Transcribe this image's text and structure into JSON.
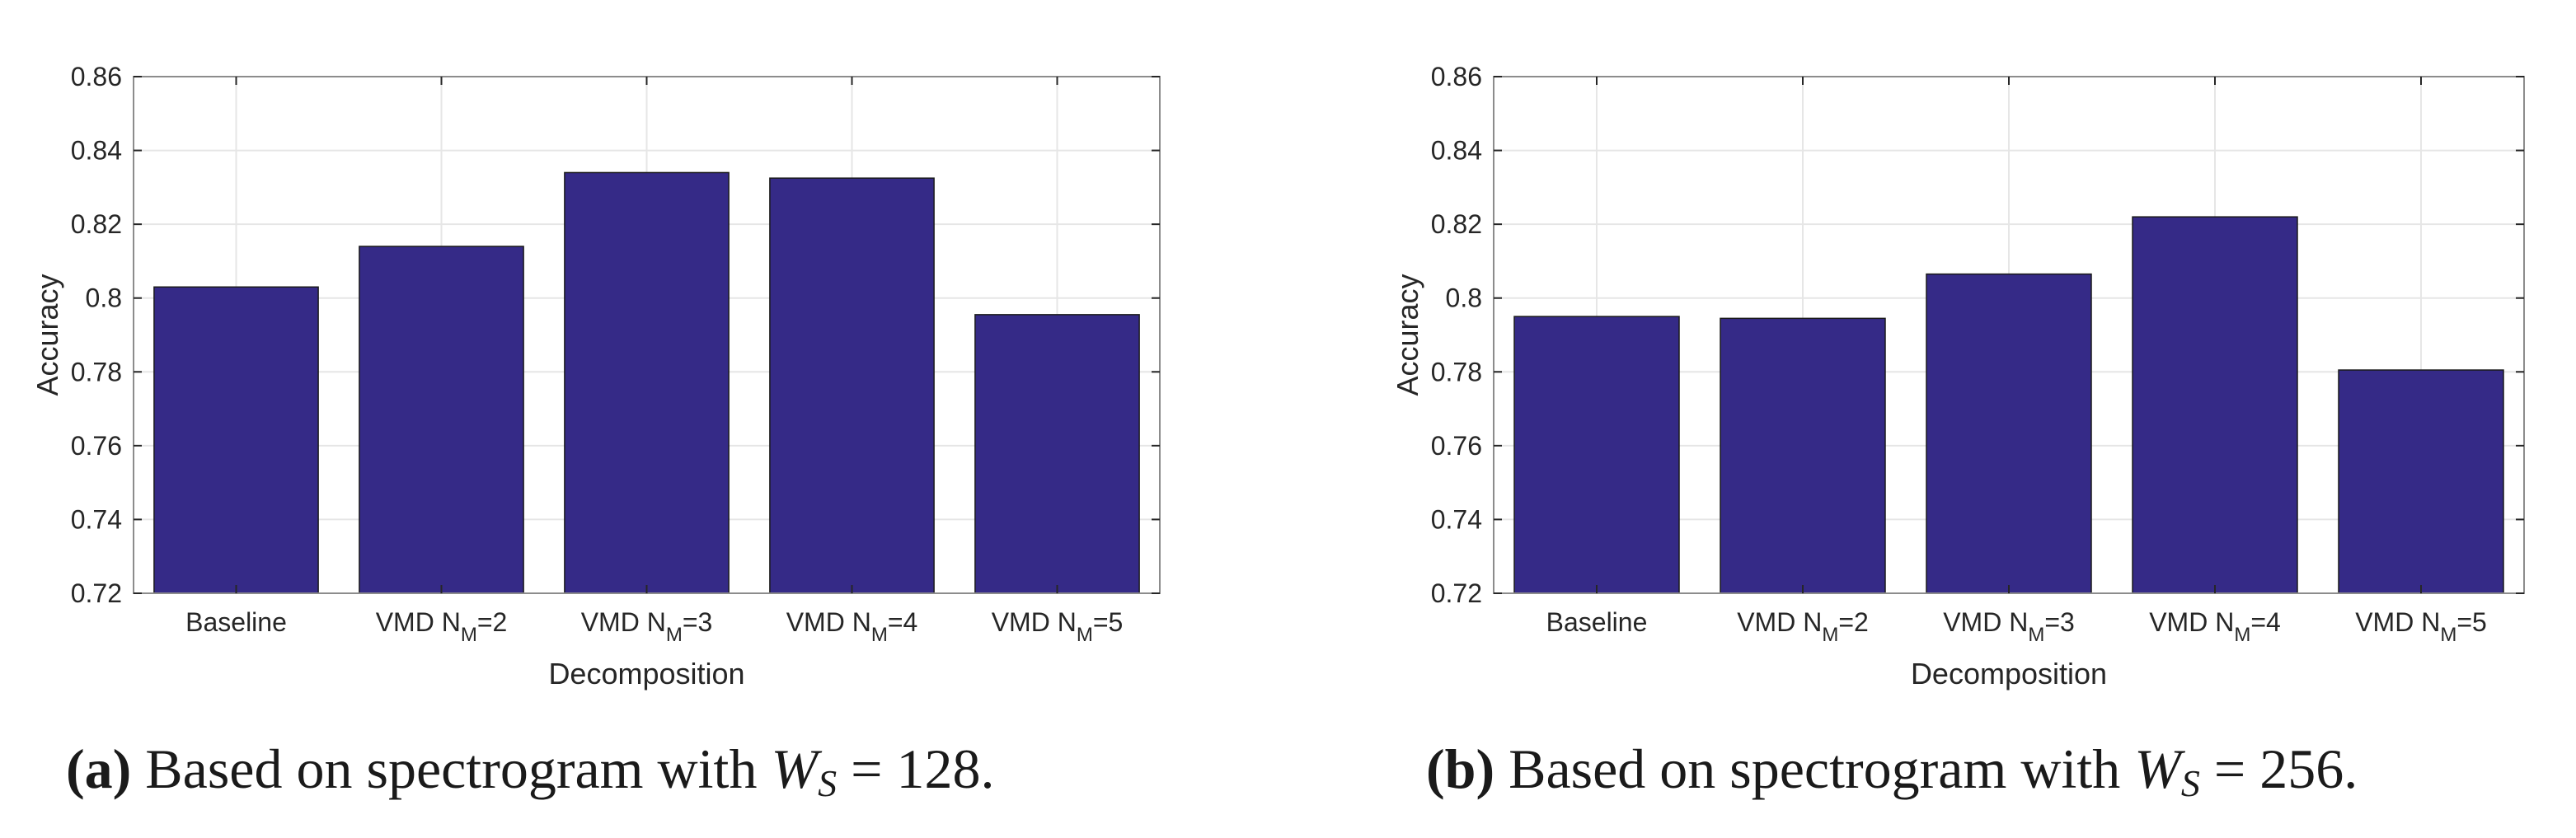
{
  "figure": {
    "bar_color": "#352a87",
    "gridline_color": "#e6e6e6",
    "axis_color": "#8c8c8c"
  },
  "chart_data": [
    {
      "type": "bar",
      "id": "a",
      "categories": [
        "Baseline",
        "VMD N_M=2",
        "VMD N_M=3",
        "VMD N_M=4",
        "VMD N_M=5"
      ],
      "category_labels": [
        {
          "pre": "Baseline",
          "sub": "",
          "post": ""
        },
        {
          "pre": "VMD N",
          "sub": "M",
          "post": "=2"
        },
        {
          "pre": "VMD N",
          "sub": "M",
          "post": "=3"
        },
        {
          "pre": "VMD N",
          "sub": "M",
          "post": "=4"
        },
        {
          "pre": "VMD N",
          "sub": "M",
          "post": "=5"
        }
      ],
      "values": [
        0.803,
        0.814,
        0.834,
        0.8325,
        0.7955
      ],
      "xlabel": "Decomposition",
      "ylabel": "Accuracy",
      "ylim": [
        0.72,
        0.86
      ],
      "yticks": [
        0.72,
        0.74,
        0.76,
        0.78,
        0.8,
        0.82,
        0.84,
        0.86
      ],
      "ytick_labels": [
        "0.72",
        "0.74",
        "0.76",
        "0.78",
        "0.8",
        "0.82",
        "0.84",
        "0.86"
      ],
      "grid": true,
      "caption": {
        "label": "(a)",
        "prefix": "Based on spectrogram with",
        "var": "W",
        "sub": "S",
        "suffix": "= 128."
      }
    },
    {
      "type": "bar",
      "id": "b",
      "categories": [
        "Baseline",
        "VMD N_M=2",
        "VMD N_M=3",
        "VMD N_M=4",
        "VMD N_M=5"
      ],
      "category_labels": [
        {
          "pre": "Baseline",
          "sub": "",
          "post": ""
        },
        {
          "pre": "VMD N",
          "sub": "M",
          "post": "=2"
        },
        {
          "pre": "VMD N",
          "sub": "M",
          "post": "=3"
        },
        {
          "pre": "VMD N",
          "sub": "M",
          "post": "=4"
        },
        {
          "pre": "VMD N",
          "sub": "M",
          "post": "=5"
        }
      ],
      "values": [
        0.795,
        0.7945,
        0.8065,
        0.822,
        0.7805
      ],
      "xlabel": "Decomposition",
      "ylabel": "Accuracy",
      "ylim": [
        0.72,
        0.86
      ],
      "yticks": [
        0.72,
        0.74,
        0.76,
        0.78,
        0.8,
        0.82,
        0.84,
        0.86
      ],
      "ytick_labels": [
        "0.72",
        "0.74",
        "0.76",
        "0.78",
        "0.8",
        "0.82",
        "0.84",
        "0.86"
      ],
      "grid": true,
      "caption": {
        "label": "(b)",
        "prefix": "Based on spectrogram with",
        "var": "W",
        "sub": "S",
        "suffix": "= 256."
      }
    }
  ]
}
